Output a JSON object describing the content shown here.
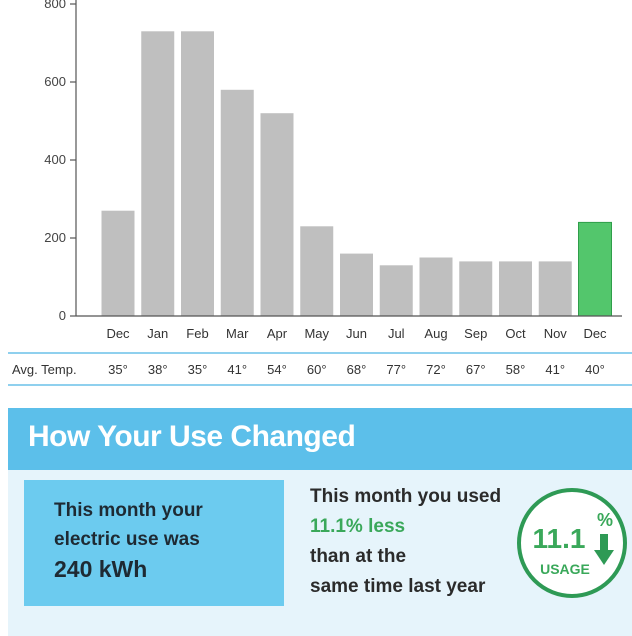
{
  "chart_data": {
    "type": "bar",
    "categories": [
      "Dec",
      "Jan",
      "Feb",
      "Mar",
      "Apr",
      "May",
      "Jun",
      "Jul",
      "Aug",
      "Sep",
      "Oct",
      "Nov",
      "Dec"
    ],
    "values": [
      270,
      730,
      730,
      580,
      520,
      230,
      160,
      130,
      150,
      140,
      140,
      140,
      240
    ],
    "highlight_index": 12,
    "colors": {
      "bar": "#bfbfbf",
      "highlight": "#53c66c",
      "highlight_stroke": "#2f9e4a",
      "axis": "#555555"
    },
    "ylim": [
      0,
      800
    ],
    "yticks": [
      0,
      200,
      400,
      600,
      800
    ],
    "ytick_labels": [
      "0",
      "200",
      "400",
      "600",
      "800"
    ],
    "title": "",
    "xlabel": "",
    "ylabel": "",
    "grid": false
  },
  "temperature_row": {
    "label": "Avg. Temp.",
    "values": [
      "35°",
      "38°",
      "35°",
      "41°",
      "54°",
      "60°",
      "68°",
      "77°",
      "72°",
      "67°",
      "58°",
      "41°",
      "40°"
    ]
  },
  "panel": {
    "title": "How Your Use Changed",
    "left_text": "This month your electric use was",
    "left_value": "240 kWh",
    "mid_line1": "This month you used",
    "mid_line2": "11.1% less",
    "mid_line3": "than at the",
    "mid_line4": "same time last year",
    "badge_value": "11.1",
    "badge_unit": "%",
    "badge_label": "USAGE",
    "colors": {
      "header": "#5cbfea",
      "left_box": "#6ccbef",
      "panel_bg": "#e6f4fb",
      "green": "#3aa85a"
    }
  }
}
